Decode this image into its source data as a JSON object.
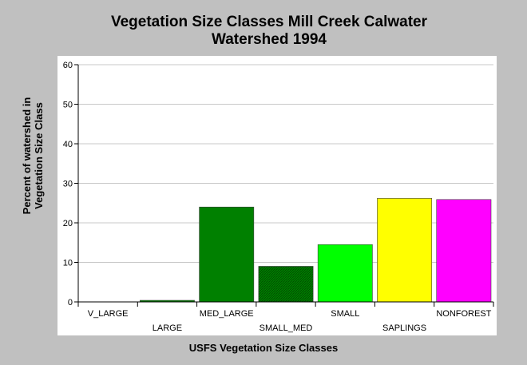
{
  "chart_data": {
    "type": "bar",
    "title_line1": "Vegetation Size Classes Mill Creek Calwater",
    "title_line2": "Watershed 1994",
    "xlabel": "USFS Vegetation Size Classes",
    "ylabel_line1": "Percent of watershed in",
    "ylabel_line2": "Vegetation Size Class",
    "ylim": [
      0,
      60
    ],
    "yticks": [
      0,
      10,
      20,
      30,
      40,
      50,
      60
    ],
    "grid": true,
    "categories": [
      "V_LARGE",
      "LARGE",
      "MED_LARGE",
      "SMALL_MED",
      "SMALL",
      "SAPLINGS",
      "NONFOREST"
    ],
    "values": [
      0,
      0.4,
      24,
      9,
      14.5,
      26.2,
      25.9
    ],
    "colors": [
      "#008000",
      "#008000",
      "#008000",
      "#007a00",
      "#00ff00",
      "#ffff00",
      "#ff00ff"
    ],
    "hatched": [
      false,
      false,
      false,
      true,
      false,
      false,
      false
    ]
  }
}
